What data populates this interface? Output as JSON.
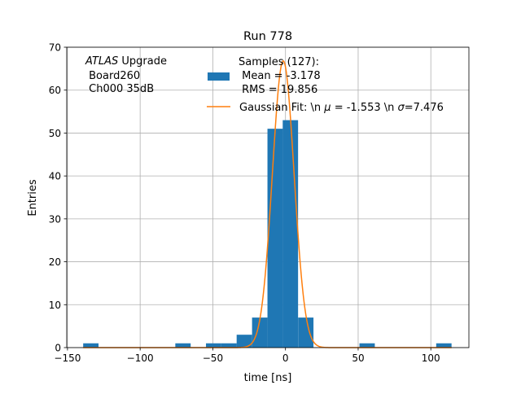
{
  "chart_data": {
    "type": "bar",
    "title": "Run 778",
    "xlabel": "time [ns]",
    "ylabel": "Entries",
    "xlim": [
      -150.5,
      126.2
    ],
    "ylim": [
      0,
      70
    ],
    "grid": true,
    "xticks": [
      -150,
      -100,
      -50,
      0,
      50,
      100
    ],
    "xtick_labels": [
      "−150",
      "−100",
      "−50",
      "0",
      "50",
      "100"
    ],
    "yticks": [
      0,
      10,
      20,
      30,
      40,
      50,
      60,
      70
    ],
    "ytick_labels": [
      "0",
      "10",
      "20",
      "30",
      "40",
      "50",
      "60",
      "70"
    ],
    "bin_width": 10.56,
    "histogram": {
      "name": "Samples (127):\n Mean = -3.178\n RMS = 19.856",
      "color": "#1f77b4",
      "bin_starts": [
        -139.2,
        -75.8,
        -54.7,
        -44.1,
        -33.6,
        -23.0,
        -12.4,
        -1.9,
        8.7,
        50.9,
        103.7
      ],
      "counts": [
        1,
        1,
        1,
        1,
        3,
        7,
        51,
        53,
        7,
        1,
        1
      ]
    },
    "fit": {
      "name": "Gaussian Fit: \\n $\\mu$ = -1.553 \\n $\\sigma$=7.476",
      "color": "#ff7f0e",
      "amplitude": 66.8,
      "mu": -1.553,
      "sigma": 7.476
    },
    "legend": {
      "placement": "top-center",
      "hist_lines": [
        "Samples (127):",
        " Mean = -3.178",
        " RMS = 19.856"
      ],
      "fit_prefix": "Gaussian Fit: \\n ",
      "fit_mu_symbol": "μ",
      "fit_middle": " = -1.553 \\n ",
      "fit_sigma_symbol": "σ",
      "fit_suffix": "=7.476"
    },
    "annotation": {
      "atlas": "ATLAS",
      "upgrade": " Upgrade",
      "line2": " Board260",
      "line3": " Ch000 35dB"
    }
  }
}
